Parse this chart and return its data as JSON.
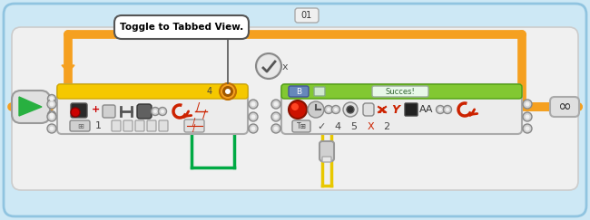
{
  "bg_color": "#cde8f5",
  "outer_border_color": "#90c4e0",
  "inner_bg": "#f5f5f5",
  "orange": "#f5a020",
  "orange_dark": "#c87000",
  "yellow_bar": "#f5c800",
  "green_bar": "#82c832",
  "green_wire": "#00aa44",
  "yellow_wire": "#e8c800",
  "gray_plug": "#c8c8c8",
  "gray_plug_dark": "#909090",
  "block_bg": "#e8e8e8",
  "block_border": "#aaaaaa",
  "play_green": "#28b040",
  "callout_text": "Toggle to Tabbed View.",
  "label_01": "01",
  "label_4": "4",
  "label_B": "B",
  "label_success": "Succes!",
  "wire_lw": 5,
  "plug_r": 5,
  "orange_lw": 7
}
